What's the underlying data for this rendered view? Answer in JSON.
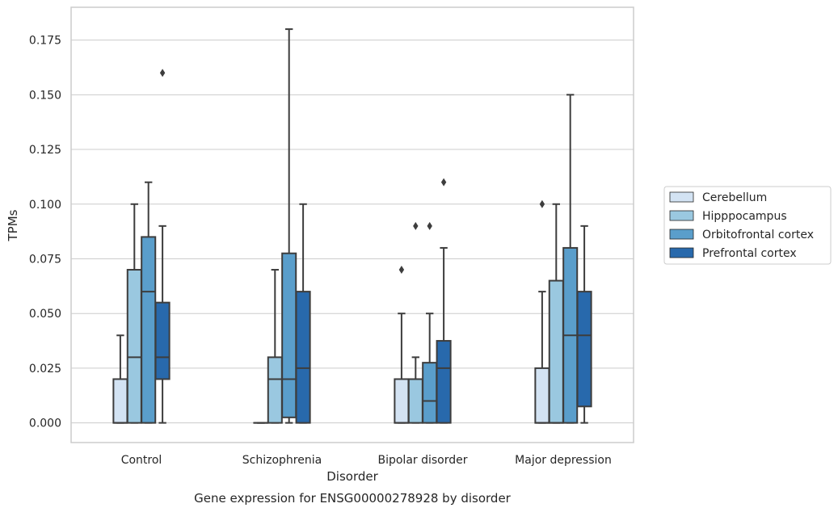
{
  "chart_data": {
    "type": "box",
    "title": "Gene expression for ENSG00000278928 by disorder",
    "xlabel": "Disorder",
    "ylabel": "TPMs",
    "ylim": [
      -0.009,
      0.19
    ],
    "yticks": [
      "0.000",
      "0.025",
      "0.050",
      "0.075",
      "0.100",
      "0.125",
      "0.150",
      "0.175"
    ],
    "ytick_values": [
      0,
      0.025,
      0.05,
      0.075,
      0.1,
      0.125,
      0.15,
      0.175
    ],
    "grid": true,
    "legend_position": "right",
    "categories": [
      "Control",
      "Schizophrenia",
      "Bipolar disorder",
      "Major depression"
    ],
    "series": [
      {
        "name": "Cerebellum",
        "color": "#d3e3f3",
        "boxes": [
          {
            "whisker_low": 0,
            "q1": 0,
            "median": 0,
            "q3": 0.02,
            "whisker_high": 0.04,
            "outliers": []
          },
          {
            "whisker_low": 0,
            "q1": 0,
            "median": 0,
            "q3": 0,
            "whisker_high": 0,
            "outliers": []
          },
          {
            "whisker_low": 0,
            "q1": 0,
            "median": 0,
            "q3": 0.02,
            "whisker_high": 0.05,
            "outliers": [
              0.07
            ]
          },
          {
            "whisker_low": 0,
            "q1": 0,
            "median": 0,
            "q3": 0.025,
            "whisker_high": 0.06,
            "outliers": [
              0.1
            ]
          }
        ]
      },
      {
        "name": "Hipppocampus",
        "color": "#9ac8e0",
        "boxes": [
          {
            "whisker_low": 0,
            "q1": 0,
            "median": 0.03,
            "q3": 0.07,
            "whisker_high": 0.1,
            "outliers": []
          },
          {
            "whisker_low": 0,
            "q1": 0,
            "median": 0.02,
            "q3": 0.03,
            "whisker_high": 0.07,
            "outliers": []
          },
          {
            "whisker_low": 0,
            "q1": 0,
            "median": 0.02,
            "q3": 0.02,
            "whisker_high": 0.03,
            "outliers": [
              0.09
            ]
          },
          {
            "whisker_low": 0,
            "q1": 0,
            "median": 0,
            "q3": 0.065,
            "whisker_high": 0.1,
            "outliers": []
          }
        ]
      },
      {
        "name": "Orbitofrontal cortex",
        "color": "#5a9ecb",
        "boxes": [
          {
            "whisker_low": 0,
            "q1": 0,
            "median": 0.06,
            "q3": 0.085,
            "whisker_high": 0.11,
            "outliers": []
          },
          {
            "whisker_low": 0,
            "q1": 0.0025,
            "median": 0.02,
            "q3": 0.0775,
            "whisker_high": 0.18,
            "outliers": []
          },
          {
            "whisker_low": 0,
            "q1": 0,
            "median": 0.01,
            "q3": 0.0275,
            "whisker_high": 0.05,
            "outliers": [
              0.09
            ]
          },
          {
            "whisker_low": 0,
            "q1": 0,
            "median": 0.04,
            "q3": 0.08,
            "whisker_high": 0.15,
            "outliers": []
          }
        ]
      },
      {
        "name": "Prefrontal cortex",
        "color": "#2869ac",
        "boxes": [
          {
            "whisker_low": 0,
            "q1": 0.02,
            "median": 0.03,
            "q3": 0.055,
            "whisker_high": 0.09,
            "outliers": [
              0.16
            ]
          },
          {
            "whisker_low": 0,
            "q1": 0,
            "median": 0.025,
            "q3": 0.06,
            "whisker_high": 0.1,
            "outliers": []
          },
          {
            "whisker_low": 0,
            "q1": 0,
            "median": 0.025,
            "q3": 0.0375,
            "whisker_high": 0.08,
            "outliers": [
              0.11
            ]
          },
          {
            "whisker_low": 0,
            "q1": 0.0075,
            "median": 0.04,
            "q3": 0.06,
            "whisker_high": 0.09,
            "outliers": []
          }
        ]
      }
    ]
  }
}
